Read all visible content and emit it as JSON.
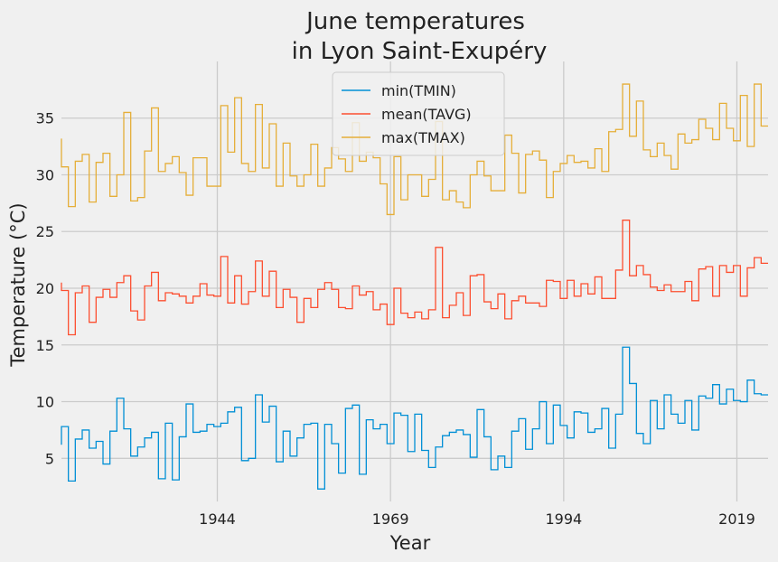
{
  "chart_data": {
    "type": "line",
    "drawstyle": "steps-mid",
    "title": [
      "June temperatures",
      "in Lyon Saint-Exupéry"
    ],
    "xlabel": "Year",
    "ylabel": "Temperature (°C)",
    "x": [
      1921,
      1922,
      1923,
      1924,
      1925,
      1926,
      1927,
      1928,
      1929,
      1930,
      1931,
      1932,
      1933,
      1934,
      1935,
      1936,
      1937,
      1938,
      1939,
      1940,
      1941,
      1942,
      1943,
      1944,
      1945,
      1946,
      1947,
      1948,
      1949,
      1950,
      1951,
      1952,
      1953,
      1954,
      1955,
      1956,
      1957,
      1958,
      1959,
      1960,
      1961,
      1962,
      1963,
      1964,
      1965,
      1966,
      1967,
      1968,
      1969,
      1970,
      1971,
      1972,
      1973,
      1974,
      1975,
      1976,
      1977,
      1978,
      1979,
      1980,
      1981,
      1982,
      1983,
      1984,
      1985,
      1986,
      1987,
      1988,
      1989,
      1990,
      1991,
      1992,
      1993,
      1994,
      1995,
      1996,
      1997,
      1998,
      1999,
      2000,
      2001,
      2002,
      2003,
      2004,
      2005,
      2006,
      2007,
      2008,
      2009,
      2010,
      2011,
      2012,
      2013,
      2014,
      2015,
      2016,
      2017,
      2018,
      2019,
      2020,
      2021,
      2022,
      2023
    ],
    "series": [
      {
        "name": "min(TMIN)",
        "color": "#008fd5",
        "values": [
          6.2,
          7.8,
          3.0,
          6.7,
          7.5,
          5.9,
          6.5,
          4.5,
          7.4,
          10.3,
          7.6,
          5.2,
          6.0,
          6.8,
          7.3,
          3.2,
          8.1,
          3.1,
          6.9,
          9.8,
          7.3,
          7.4,
          8.0,
          7.8,
          8.1,
          9.1,
          9.5,
          4.8,
          5.0,
          10.6,
          8.2,
          9.6,
          4.7,
          7.4,
          5.2,
          6.8,
          8.0,
          8.1,
          2.3,
          8.0,
          6.3,
          3.7,
          9.4,
          9.7,
          3.6,
          8.4,
          7.6,
          8.0,
          6.3,
          9.0,
          8.8,
          5.6,
          8.9,
          5.7,
          4.2,
          6.0,
          7.0,
          7.3,
          7.5,
          7.1,
          5.1,
          9.3,
          6.9,
          4.0,
          5.2,
          4.2,
          7.4,
          8.5,
          5.8,
          7.6,
          10.0,
          6.3,
          9.7,
          7.9,
          6.8,
          9.1,
          9.0,
          7.3,
          7.6,
          9.4,
          5.9,
          8.9,
          14.8,
          11.6,
          7.2,
          6.3,
          10.1,
          7.6,
          10.6,
          8.9,
          8.1,
          10.1,
          7.5,
          10.5,
          10.3,
          11.5,
          9.8,
          11.1,
          10.1,
          10.0,
          11.9,
          10.7,
          10.6
        ]
      },
      {
        "name": "mean(TAVG)",
        "color": "#fc4f30",
        "values": [
          20.5,
          19.8,
          15.9,
          19.6,
          20.2,
          17.0,
          19.2,
          19.9,
          19.2,
          20.5,
          21.1,
          18.0,
          17.2,
          20.2,
          21.4,
          18.9,
          19.6,
          19.5,
          19.3,
          18.7,
          19.3,
          20.4,
          19.4,
          19.3,
          22.8,
          18.7,
          21.1,
          18.6,
          19.7,
          22.4,
          19.3,
          21.5,
          18.3,
          19.9,
          19.2,
          17.0,
          19.1,
          18.3,
          19.9,
          20.5,
          19.9,
          18.3,
          18.2,
          20.2,
          19.4,
          19.7,
          18.1,
          18.6,
          16.8,
          20.0,
          17.8,
          17.4,
          17.9,
          17.3,
          18.1,
          23.6,
          17.4,
          18.5,
          19.6,
          17.6,
          21.1,
          21.2,
          18.8,
          18.2,
          19.5,
          17.3,
          18.9,
          19.3,
          18.7,
          18.7,
          18.4,
          20.7,
          20.6,
          19.1,
          20.7,
          19.3,
          20.4,
          19.5,
          21.0,
          19.1,
          19.1,
          21.6,
          26.0,
          21.1,
          22.0,
          21.2,
          20.1,
          19.8,
          20.3,
          19.7,
          19.7,
          20.6,
          18.9,
          21.7,
          21.9,
          19.3,
          22.0,
          21.4,
          22.0,
          19.3,
          21.8,
          22.7,
          22.2
        ]
      },
      {
        "name": "max(TMAX)",
        "color": "#e5ae38",
        "values": [
          33.2,
          30.7,
          27.2,
          31.2,
          31.8,
          27.6,
          31.1,
          31.9,
          28.1,
          30.0,
          35.5,
          27.7,
          28.0,
          32.1,
          35.9,
          30.3,
          31.0,
          31.6,
          30.2,
          28.2,
          31.5,
          31.5,
          29.0,
          29.0,
          36.1,
          32.0,
          36.8,
          31.0,
          30.3,
          36.2,
          30.6,
          34.5,
          29.0,
          32.8,
          29.9,
          29.0,
          30.0,
          32.7,
          29.0,
          30.6,
          32.4,
          31.4,
          30.3,
          34.6,
          31.2,
          32.0,
          31.5,
          29.2,
          26.5,
          31.6,
          27.8,
          30.0,
          30.0,
          28.1,
          29.6,
          34.7,
          27.8,
          28.6,
          27.6,
          27.1,
          30.0,
          31.2,
          29.9,
          28.6,
          28.6,
          33.5,
          31.9,
          28.4,
          31.8,
          32.1,
          31.3,
          28.0,
          30.3,
          31.0,
          31.7,
          31.1,
          31.2,
          30.6,
          32.3,
          30.3,
          33.8,
          34.0,
          38.0,
          33.4,
          36.5,
          32.2,
          31.6,
          32.8,
          31.7,
          30.5,
          33.6,
          32.8,
          33.1,
          34.9,
          34.1,
          33.1,
          36.3,
          34.1,
          33.0,
          37.0,
          32.5,
          38.0,
          34.3
        ]
      }
    ],
    "xlim": [
      1921.5,
      2023.5
    ],
    "xticks": [
      1944,
      1969,
      1994,
      2019
    ],
    "ylim": [
      1.2,
      39.2
    ],
    "yticks": [
      5,
      10,
      15,
      20,
      25,
      30,
      35
    ],
    "grid": true,
    "legend": "upper center"
  }
}
